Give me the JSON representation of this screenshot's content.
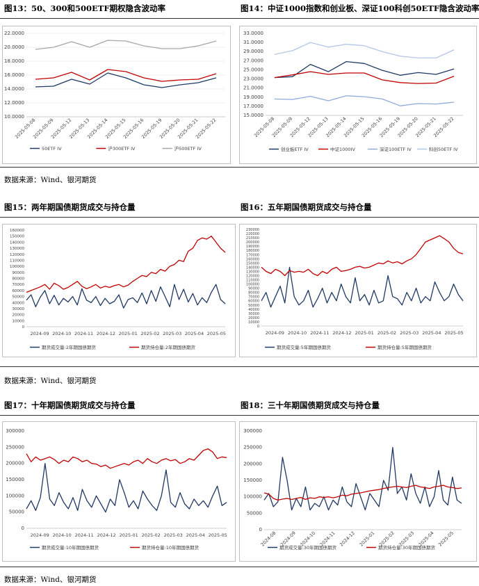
{
  "source_text": "数据来源：Wind、银河期货",
  "charts": [
    {
      "id": "c13",
      "title": "图13：50、300和500ETF期权隐含波动率",
      "type": "line",
      "x_labels": [
        "2025-05-08",
        "2025-05-09",
        "2025-05-12",
        "2025-05-13",
        "2025-05-14",
        "2025-05-15",
        "2025-05-16",
        "2025-05-19",
        "2025-05-20",
        "2025-05-21",
        "2025-05-22"
      ],
      "y_ticks": [
        "10.0000",
        "12.0000",
        "14.0000",
        "16.0000",
        "18.0000",
        "20.0000",
        "22.0000"
      ],
      "ylim": [
        10,
        22
      ],
      "series": [
        {
          "name": "50ETF IV",
          "color": "#1f3864",
          "values": [
            14.3,
            14.4,
            15.4,
            14.7,
            16.3,
            15.6,
            14.6,
            14.2,
            14.6,
            14.9,
            15.6
          ]
        },
        {
          "name": "沪300ETF IV",
          "color": "#c00000",
          "values": [
            15.4,
            15.6,
            16.4,
            15.3,
            16.8,
            16.5,
            15.6,
            15.1,
            15.3,
            15.4,
            16.2
          ]
        },
        {
          "name": "沪500ETF IV",
          "color": "#a6a6a6",
          "values": [
            19.7,
            20.0,
            20.8,
            20.0,
            21.0,
            20.9,
            20.2,
            19.8,
            19.8,
            20.2,
            20.9
          ]
        }
      ]
    },
    {
      "id": "c14",
      "title": "图14：中证1000指数和创业板、深证100科创50ETF隐含波动率",
      "type": "line",
      "x_labels": [
        "2025-05-08",
        "2025-05-09",
        "2025-05-12",
        "2025-05-13",
        "2025-05-14",
        "2025-05-15",
        "2025-05-16",
        "2025-05-19",
        "2025-05-20",
        "2025-05-21",
        "2025-05-22"
      ],
      "y_ticks": [
        "15.0000",
        "17.0000",
        "19.0000",
        "21.0000",
        "23.0000",
        "25.0000",
        "27.0000",
        "29.0000",
        "31.0000",
        "33.0000"
      ],
      "ylim": [
        15,
        33
      ],
      "series": [
        {
          "name": "创业板ETF IV",
          "color": "#1f3864",
          "values": [
            23.3,
            23.5,
            26.2,
            24.6,
            26.8,
            26.4,
            24.9,
            23.8,
            24.4,
            24.0,
            25.2
          ]
        },
        {
          "name": "中证1000IV",
          "color": "#c00000",
          "values": [
            23.3,
            23.9,
            24.6,
            24.0,
            24.3,
            24.3,
            22.8,
            22.2,
            22.0,
            22.1,
            23.6
          ]
        },
        {
          "name": "深证100ETF IV",
          "color": "#8faadc",
          "values": [
            18.6,
            18.5,
            19.2,
            18.2,
            19.3,
            19.1,
            18.6,
            17.1,
            17.6,
            17.5,
            17.9
          ]
        },
        {
          "name": "科创50ETF IV",
          "color": "#b4c7e7",
          "values": [
            28.4,
            29.2,
            31.0,
            30.0,
            30.6,
            30.3,
            29.0,
            28.0,
            27.6,
            27.6,
            29.4
          ]
        }
      ]
    },
    {
      "id": "c15",
      "title": "图15：两年期国债期货成交与持仓量",
      "type": "line",
      "x_labels": [
        "2024-09",
        "2024-10",
        "2024-11",
        "2024-12",
        "2025-01",
        "2025-02",
        "2025-03",
        "2025-04",
        "2025-05"
      ],
      "y_ticks": [
        "0",
        "10000",
        "20000",
        "30000",
        "40000",
        "50000",
        "60000",
        "70000",
        "80000",
        "90000",
        "100000",
        "110000",
        "120000",
        "130000",
        "140000",
        "150000",
        "160000"
      ],
      "ylim": [
        0,
        160000
      ],
      "series": [
        {
          "name": "期货成交量:2年期国债期货",
          "color": "#1f3864",
          "values": [
            44000,
            53000,
            33000,
            49000,
            60000,
            38000,
            52000,
            36000,
            47000,
            41000,
            50000,
            36000,
            63000,
            44000,
            40000,
            50000,
            35000,
            47000,
            38000,
            42000,
            53000,
            31000,
            45000,
            48000,
            40000,
            56000,
            38000,
            60000,
            42000,
            66000,
            50000,
            33000,
            70000,
            45000,
            62000,
            41000,
            55000,
            36000,
            48000,
            40000,
            57000,
            70000,
            45000,
            38000
          ]
        },
        {
          "name": "期货持仓量:2年期国债期货",
          "color": "#c00000",
          "values": [
            57000,
            60000,
            63000,
            66000,
            70000,
            62000,
            72000,
            68000,
            62000,
            65000,
            70000,
            75000,
            67000,
            63000,
            66000,
            70000,
            64000,
            67000,
            65000,
            68000,
            70000,
            66000,
            69000,
            75000,
            80000,
            85000,
            83000,
            90000,
            88000,
            95000,
            92000,
            100000,
            103000,
            110000,
            108000,
            125000,
            130000,
            143000,
            147000,
            145000,
            150000,
            140000,
            130000,
            123000
          ]
        }
      ]
    },
    {
      "id": "c16",
      "title": "图16：五年期国债期货成交与持仓量",
      "type": "line",
      "x_labels": [
        "2024-09",
        "2024-10",
        "2024-11",
        "2024-12",
        "2025-01",
        "2025-02",
        "2025-03",
        "2025-04",
        "2025-05"
      ],
      "y_ticks": [
        "0",
        "10000",
        "20000",
        "30000",
        "40000",
        "50000",
        "60000",
        "70000",
        "80000",
        "90000",
        "100000",
        "110000",
        "120000",
        "130000",
        "140000",
        "150000",
        "160000",
        "170000",
        "180000",
        "190000",
        "200000",
        "210000",
        "220000",
        "230000"
      ],
      "ylim": [
        0,
        230000
      ],
      "series": [
        {
          "name": "期货成交量:5年期国债期货",
          "color": "#1f3864",
          "values": [
            60000,
            80000,
            45000,
            70000,
            95000,
            55000,
            140000,
            70000,
            50000,
            60000,
            85000,
            45000,
            65000,
            90000,
            55000,
            80000,
            60000,
            100000,
            70000,
            55000,
            115000,
            60000,
            75000,
            50000,
            85000,
            55000,
            60000,
            120000,
            70000,
            65000,
            50000,
            80000,
            60000,
            90000,
            55000,
            70000,
            60000,
            105000,
            80000,
            60000,
            70000,
            100000,
            75000,
            60000
          ]
        },
        {
          "name": "期货持仓量:5年期国债期货",
          "color": "#c00000",
          "values": [
            140000,
            130000,
            125000,
            135000,
            130000,
            120000,
            132000,
            128000,
            130000,
            128000,
            135000,
            125000,
            120000,
            130000,
            125000,
            135000,
            140000,
            130000,
            132000,
            135000,
            140000,
            142000,
            138000,
            140000,
            145000,
            150000,
            148000,
            155000,
            150000,
            153000,
            148000,
            155000,
            160000,
            170000,
            185000,
            200000,
            205000,
            210000,
            215000,
            208000,
            200000,
            185000,
            175000,
            172000
          ]
        }
      ]
    },
    {
      "id": "c17",
      "title": "图17：十年期国债期货成交与持仓量",
      "type": "line",
      "x_labels": [
        "2024-09",
        "2024-10",
        "2024-11",
        "2024-12",
        "2025-01",
        "2025-02",
        "2025-03",
        "2025-04",
        "2025-05"
      ],
      "y_ticks": [
        "0",
        "50000",
        "100000",
        "150000",
        "200000",
        "250000",
        "300000"
      ],
      "ylim": [
        0,
        300000
      ],
      "series": [
        {
          "name": "期货成交量:10年期国债期货",
          "color": "#1f3864",
          "values": [
            60000,
            85000,
            55000,
            95000,
            200000,
            90000,
            70000,
            110000,
            80000,
            60000,
            95000,
            55000,
            120000,
            85000,
            65000,
            100000,
            75000,
            50000,
            90000,
            70000,
            150000,
            110000,
            65000,
            85000,
            60000,
            115000,
            90000,
            70000,
            55000,
            100000,
            180000,
            80000,
            65000,
            110000,
            75000,
            60000,
            90000,
            70000,
            85000,
            65000,
            100000,
            130000,
            70000,
            80000
          ]
        },
        {
          "name": "期货持仓量:10年期国债期货",
          "color": "#c00000",
          "values": [
            230000,
            205000,
            220000,
            210000,
            215000,
            220000,
            212000,
            200000,
            210000,
            205000,
            220000,
            215000,
            205000,
            210000,
            200000,
            198000,
            190000,
            195000,
            185000,
            190000,
            195000,
            200000,
            195000,
            205000,
            210000,
            200000,
            215000,
            205000,
            200000,
            210000,
            215000,
            208000,
            212000,
            200000,
            205000,
            215000,
            210000,
            225000,
            240000,
            245000,
            235000,
            215000,
            220000,
            218000
          ]
        }
      ]
    },
    {
      "id": "c18",
      "title": "图18：三十年期国债期货成交与持仓量",
      "type": "line",
      "x_labels": [
        "2024-08",
        "2024-09",
        "2024-10",
        "2024-11",
        "2024-12",
        "2025-01",
        "2025-02",
        "2025-03",
        "2025-04",
        "2025-05"
      ],
      "y_ticks": [
        "0",
        "50000",
        "100000",
        "150000",
        "200000",
        "250000",
        "300000"
      ],
      "ylim": [
        0,
        300000
      ],
      "series": [
        {
          "name": "期货成交量:30年期国债期货",
          "color": "#1f3864",
          "values": [
            90000,
            110000,
            70000,
            85000,
            220000,
            150000,
            60000,
            95000,
            70000,
            130000,
            60000,
            80000,
            70000,
            100000,
            60000,
            90000,
            75000,
            130000,
            85000,
            70000,
            140000,
            100000,
            60000,
            110000,
            90000,
            70000,
            150000,
            120000,
            250000,
            110000,
            130000,
            90000,
            170000,
            110000,
            80000,
            130000,
            70000,
            100000,
            180000,
            90000,
            75000,
            160000,
            90000,
            80000
          ]
        },
        {
          "name": "期货持仓量:30年期国债期货",
          "color": "#c00000",
          "values": [
            112000,
            108000,
            95000,
            90000,
            93000,
            95000,
            92000,
            95000,
            98000,
            92000,
            97000,
            95000,
            100000,
            98000,
            100000,
            97000,
            100000,
            105000,
            103000,
            108000,
            110000,
            112000,
            115000,
            118000,
            120000,
            122000,
            125000,
            128000,
            130000,
            132000,
            130000,
            128000,
            132000,
            135000,
            130000,
            128000,
            125000,
            130000,
            132000,
            135000,
            130000,
            128000,
            125000,
            127000
          ]
        }
      ]
    }
  ]
}
